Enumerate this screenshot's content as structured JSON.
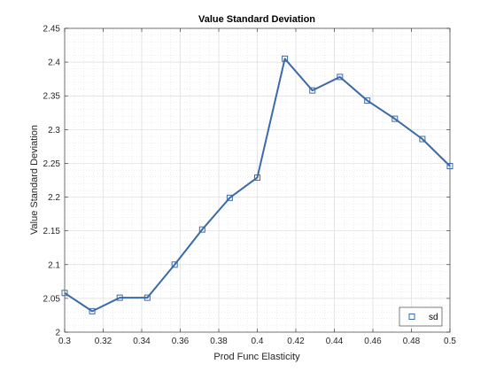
{
  "chart_data": {
    "type": "line",
    "title": "Value Standard Deviation",
    "xlabel": "Prod Func Elasticity",
    "ylabel": "Value Standard Deviation",
    "xlim": [
      0.3,
      0.5
    ],
    "ylim": [
      2.0,
      2.45
    ],
    "xticks": [
      0.3,
      0.32,
      0.34,
      0.36,
      0.38,
      0.4,
      0.42,
      0.44,
      0.46,
      0.48,
      0.5
    ],
    "xtick_labels": [
      "0.3",
      "0.32",
      "0.34",
      "0.36",
      "0.38",
      "0.4",
      "0.42",
      "0.44",
      "0.46",
      "0.48",
      "0.5"
    ],
    "yticks": [
      2.0,
      2.05,
      2.1,
      2.15,
      2.2,
      2.25,
      2.3,
      2.35,
      2.4,
      2.45
    ],
    "ytick_labels": [
      "2",
      "2.05",
      "2.1",
      "2.15",
      "2.2",
      "2.25",
      "2.3",
      "2.35",
      "2.4",
      "2.45"
    ],
    "grid": true,
    "minor_grid": true,
    "legend_position": "bottom-right",
    "series": [
      {
        "name": "sd",
        "color": "#3b6aa9",
        "marker": "square",
        "x": [
          0.3,
          0.3143,
          0.3286,
          0.3429,
          0.3571,
          0.3714,
          0.3857,
          0.4,
          0.4143,
          0.4286,
          0.4429,
          0.4571,
          0.4714,
          0.4857,
          0.5
        ],
        "y": [
          2.058,
          2.031,
          2.051,
          2.051,
          2.1,
          2.152,
          2.199,
          2.229,
          2.405,
          2.358,
          2.378,
          2.343,
          2.316,
          2.286,
          2.246
        ]
      }
    ]
  }
}
